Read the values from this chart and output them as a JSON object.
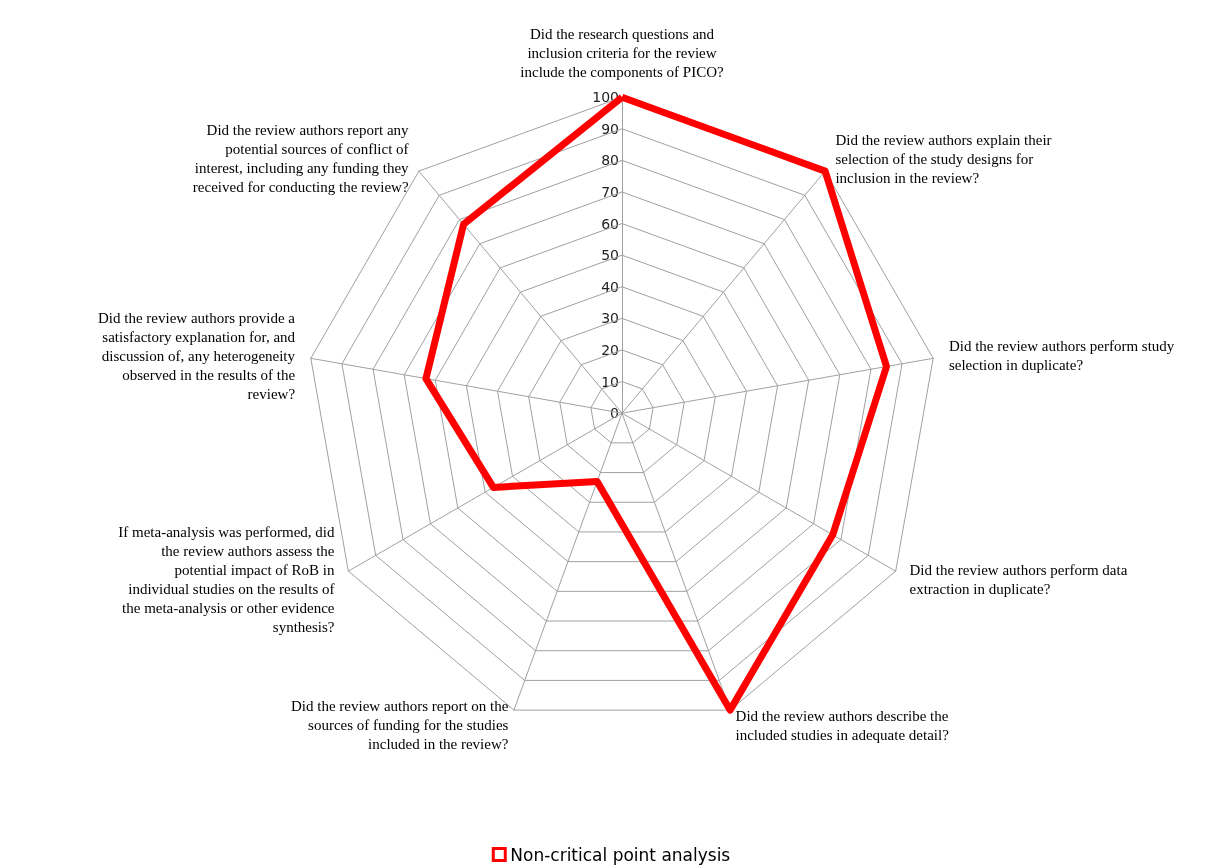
{
  "chart_data": {
    "type": "radar",
    "categories": [
      "Did the research questions and inclusion criteria for the review include the components of PICO?",
      "Did the review authors explain their selection of the study designs for inclusion in the review?",
      "Did the review authors perform study selection in duplicate?",
      "Did the review authors perform data extraction in duplicate?",
      "Did the review authors describe the included studies in adequate detail?",
      "Did the review authors report on the sources of funding for the studies included in the review?",
      "If meta-analysis was performed, did the review authors assess the potential impact of RoB in individual studies on the results of the meta-analysis or other evidence synthesis?",
      "Did the review authors provide a satisfactory explanation for, and discussion of, any heterogeneity observed in the results of the review?",
      "Did the review authors report any potential sources of conflict of interest, including any funding they received for conducting the review?"
    ],
    "series": [
      {
        "name": "Non-critical point analysis",
        "color": "#ff0000",
        "values": [
          100,
          100,
          85,
          77,
          100,
          23,
          47,
          63,
          78
        ]
      }
    ],
    "ylim": [
      0,
      100
    ],
    "yticks": [
      0,
      10,
      20,
      30,
      40,
      50,
      60,
      70,
      80,
      90,
      100
    ],
    "grid": true,
    "legend": "bottom",
    "marker": "none",
    "line_style": "solid"
  }
}
